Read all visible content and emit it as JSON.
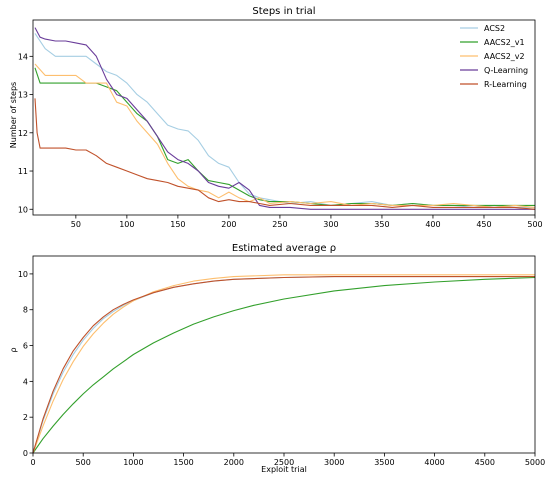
{
  "chart_data": [
    {
      "type": "line",
      "title": "Steps in trial",
      "xlabel": "",
      "ylabel": "Number of steps",
      "xlim": [
        8,
        500
      ],
      "ylim": [
        9.85,
        14.95
      ],
      "xticks": [
        50,
        100,
        150,
        200,
        250,
        300,
        350,
        400,
        450,
        500
      ],
      "yticks": [
        10,
        11,
        12,
        13,
        14
      ],
      "grid": false,
      "legend": "top-right",
      "series": [
        {
          "name": "ACS2",
          "color": "#a6cee3",
          "x": [
            10,
            20,
            30,
            40,
            50,
            60,
            70,
            80,
            90,
            100,
            110,
            120,
            130,
            140,
            150,
            160,
            170,
            180,
            190,
            200,
            210,
            220,
            230,
            240,
            260,
            280,
            300,
            320,
            340,
            360,
            380,
            400,
            420,
            440,
            460,
            480,
            500
          ],
          "y": [
            14.6,
            14.2,
            14.0,
            14.0,
            14.0,
            14.0,
            13.8,
            13.6,
            13.5,
            13.3,
            13.0,
            12.8,
            12.5,
            12.2,
            12.1,
            12.05,
            11.8,
            11.4,
            11.2,
            11.1,
            10.7,
            10.4,
            10.3,
            10.25,
            10.15,
            10.2,
            10.1,
            10.15,
            10.2,
            10.1,
            10.15,
            10.1,
            10.1,
            10.05,
            10.1,
            10.05,
            10.05
          ]
        },
        {
          "name": "AACS2_v1",
          "color": "#33a02c",
          "x": [
            10,
            15,
            20,
            30,
            40,
            50,
            60,
            70,
            80,
            90,
            100,
            110,
            120,
            130,
            140,
            150,
            160,
            170,
            180,
            190,
            200,
            210,
            220,
            230,
            240,
            260,
            280,
            300,
            320,
            340,
            360,
            380,
            400,
            420,
            440,
            460,
            480,
            500
          ],
          "y": [
            13.7,
            13.3,
            13.3,
            13.3,
            13.3,
            13.3,
            13.3,
            13.3,
            13.2,
            13.1,
            12.8,
            12.5,
            12.3,
            11.9,
            11.3,
            11.2,
            11.3,
            11.0,
            10.75,
            10.7,
            10.65,
            10.5,
            10.35,
            10.25,
            10.2,
            10.2,
            10.15,
            10.1,
            10.15,
            10.15,
            10.1,
            10.15,
            10.1,
            10.1,
            10.1,
            10.1,
            10.1,
            10.1
          ]
        },
        {
          "name": "AACS2_v2",
          "color": "#fdbf6f",
          "x": [
            10,
            20,
            30,
            40,
            50,
            60,
            70,
            80,
            90,
            100,
            110,
            120,
            130,
            140,
            150,
            160,
            170,
            180,
            190,
            200,
            210,
            220,
            230,
            240,
            260,
            280,
            300,
            320,
            340,
            360,
            380,
            400,
            420,
            440,
            460,
            480,
            500
          ],
          "y": [
            13.8,
            13.5,
            13.5,
            13.5,
            13.5,
            13.3,
            13.3,
            13.3,
            12.8,
            12.7,
            12.3,
            12.0,
            11.7,
            11.2,
            10.8,
            10.6,
            10.5,
            10.45,
            10.3,
            10.45,
            10.3,
            10.2,
            10.3,
            10.15,
            10.2,
            10.15,
            10.2,
            10.1,
            10.15,
            10.1,
            10.1,
            10.1,
            10.15,
            10.1,
            10.05,
            10.1,
            10.05
          ]
        },
        {
          "name": "Q-Learning",
          "color": "#6a3d9a",
          "x": [
            10,
            15,
            20,
            30,
            40,
            50,
            60,
            70,
            80,
            90,
            100,
            110,
            120,
            130,
            140,
            150,
            160,
            170,
            180,
            190,
            200,
            210,
            220,
            230,
            240,
            260,
            280,
            300,
            320,
            340,
            360,
            380,
            400,
            420,
            440,
            460,
            480,
            500
          ],
          "y": [
            14.75,
            14.5,
            14.45,
            14.4,
            14.4,
            14.35,
            14.3,
            14.0,
            13.4,
            13.0,
            12.9,
            12.6,
            12.3,
            11.9,
            11.5,
            11.3,
            11.2,
            11.0,
            10.7,
            10.6,
            10.55,
            10.7,
            10.5,
            10.1,
            10.05,
            10.05,
            10.0,
            10.0,
            10.0,
            10.0,
            10.0,
            10.0,
            10.0,
            10.0,
            10.0,
            10.0,
            10.0,
            10.0
          ]
        },
        {
          "name": "R-Learning",
          "color": "#c0522b",
          "x": [
            10,
            12,
            15,
            20,
            30,
            40,
            50,
            60,
            70,
            80,
            90,
            100,
            110,
            120,
            130,
            140,
            150,
            160,
            170,
            180,
            190,
            200,
            210,
            220,
            230,
            240,
            260,
            280,
            300,
            320,
            340,
            360,
            380,
            400,
            420,
            440,
            460,
            480,
            500
          ],
          "y": [
            12.9,
            12.0,
            11.6,
            11.6,
            11.6,
            11.6,
            11.55,
            11.55,
            11.4,
            11.2,
            11.1,
            11.0,
            10.9,
            10.8,
            10.75,
            10.7,
            10.6,
            10.55,
            10.5,
            10.3,
            10.2,
            10.25,
            10.2,
            10.2,
            10.15,
            10.1,
            10.15,
            10.1,
            10.1,
            10.1,
            10.1,
            10.05,
            10.1,
            10.05,
            10.05,
            10.05,
            10.05,
            10.05,
            10.0
          ]
        }
      ]
    },
    {
      "type": "line",
      "title": "Estimated average ρ",
      "xlabel": "Exploit trial",
      "ylabel": "ρ",
      "xlim": [
        0,
        5000
      ],
      "ylim": [
        0,
        11
      ],
      "xticks": [
        0,
        500,
        1000,
        1500,
        2000,
        2500,
        3000,
        3500,
        4000,
        4500,
        5000
      ],
      "yticks": [
        0,
        2,
        4,
        6,
        8,
        10
      ],
      "grid": false,
      "legend": "none",
      "series": [
        {
          "name": "ACS2",
          "color": "#a6cee3",
          "x": [
            0,
            100,
            200,
            300,
            400,
            500,
            600,
            700,
            800,
            900,
            1000,
            1200,
            1400,
            1600,
            1800,
            2000,
            2500,
            3000,
            3500,
            4000,
            4500,
            5000
          ],
          "y": [
            0.0,
            1.8,
            3.3,
            4.5,
            5.5,
            6.3,
            6.95,
            7.5,
            7.9,
            8.25,
            8.5,
            8.95,
            9.25,
            9.45,
            9.6,
            9.7,
            9.8,
            9.85,
            9.85,
            9.85,
            9.85,
            9.85
          ]
        },
        {
          "name": "AACS2_v1",
          "color": "#33a02c",
          "x": [
            0,
            100,
            200,
            300,
            400,
            500,
            600,
            700,
            800,
            900,
            1000,
            1200,
            1400,
            1600,
            1800,
            2000,
            2200,
            2500,
            3000,
            3500,
            4000,
            4500,
            5000
          ],
          "y": [
            0.0,
            0.8,
            1.5,
            2.15,
            2.75,
            3.3,
            3.8,
            4.25,
            4.7,
            5.1,
            5.5,
            6.15,
            6.7,
            7.2,
            7.6,
            7.95,
            8.25,
            8.6,
            9.05,
            9.35,
            9.55,
            9.7,
            9.8
          ]
        },
        {
          "name": "AACS2_v2",
          "color": "#fdbf6f",
          "x": [
            0,
            100,
            200,
            300,
            400,
            500,
            600,
            700,
            800,
            900,
            1000,
            1200,
            1400,
            1600,
            1800,
            2000,
            2500,
            3000,
            3500,
            4000,
            4500,
            5000
          ],
          "y": [
            0.0,
            1.5,
            2.9,
            4.1,
            5.1,
            5.95,
            6.65,
            7.25,
            7.75,
            8.15,
            8.5,
            9.0,
            9.35,
            9.6,
            9.75,
            9.85,
            9.95,
            9.95,
            9.95,
            9.95,
            9.95,
            9.95
          ]
        },
        {
          "name": "Q-Learning",
          "color": "#6a3d9a",
          "x": [],
          "y": []
        },
        {
          "name": "R-Learning",
          "color": "#c0522b",
          "x": [
            0,
            100,
            200,
            300,
            400,
            500,
            600,
            700,
            800,
            900,
            1000,
            1200,
            1400,
            1600,
            1800,
            2000,
            2500,
            3000,
            3500,
            4000,
            4500,
            5000
          ],
          "y": [
            0.0,
            1.9,
            3.45,
            4.7,
            5.7,
            6.45,
            7.1,
            7.6,
            8.0,
            8.3,
            8.55,
            8.95,
            9.25,
            9.45,
            9.6,
            9.7,
            9.8,
            9.85,
            9.85,
            9.85,
            9.85,
            9.85
          ]
        }
      ]
    }
  ]
}
